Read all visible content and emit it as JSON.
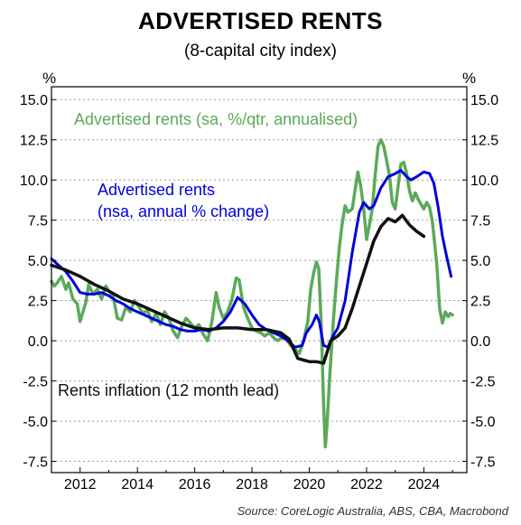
{
  "title": "ADVERTISED RENTS",
  "subtitle": "(8-capital city index)",
  "source": "Source: CoreLogic Australia, ABS, CBA, Macrobond",
  "chart_data": {
    "type": "line",
    "left_unit": "%",
    "right_unit": "%",
    "xlim": [
      2011.0,
      2025.5
    ],
    "ylim": [
      -8.2,
      15.8
    ],
    "x_ticks": [
      2012,
      2014,
      2016,
      2018,
      2020,
      2022,
      2024
    ],
    "y_ticks": [
      15.0,
      12.5,
      10.0,
      7.5,
      5.0,
      2.5,
      0.0,
      -2.5,
      -5.0,
      -7.5
    ],
    "y_tick_labels": [
      "15.0",
      "12.5",
      "10.0",
      "7.5",
      "5.0",
      "2.5",
      "0.0",
      "-2.5",
      "-5.0",
      "-7.5"
    ],
    "grid": "horizontal dotted",
    "series": [
      {
        "name": "Advertised rents (sa, %/qtr, annualised)",
        "label_lines": [
          "Advertised rents (sa, %/qtr, annualised)"
        ],
        "color": "#5aaa5a",
        "stroke": 3.5,
        "points": [
          [
            2011.0,
            3.7
          ],
          [
            2011.1,
            3.4
          ],
          [
            2011.2,
            3.6
          ],
          [
            2011.35,
            4.0
          ],
          [
            2011.5,
            3.2
          ],
          [
            2011.6,
            3.6
          ],
          [
            2011.75,
            2.6
          ],
          [
            2011.9,
            2.3
          ],
          [
            2012.0,
            1.2
          ],
          [
            2012.1,
            1.8
          ],
          [
            2012.2,
            2.4
          ],
          [
            2012.3,
            3.5
          ],
          [
            2012.45,
            2.9
          ],
          [
            2012.6,
            3.2
          ],
          [
            2012.75,
            2.6
          ],
          [
            2012.9,
            3.4
          ],
          [
            2013.0,
            3.1
          ],
          [
            2013.15,
            2.8
          ],
          [
            2013.3,
            1.4
          ],
          [
            2013.45,
            1.3
          ],
          [
            2013.6,
            2.1
          ],
          [
            2013.75,
            1.8
          ],
          [
            2013.9,
            2.5
          ],
          [
            2014.05,
            2.1
          ],
          [
            2014.2,
            1.7
          ],
          [
            2014.35,
            1.9
          ],
          [
            2014.5,
            1.2
          ],
          [
            2014.65,
            1.7
          ],
          [
            2014.8,
            1.0
          ],
          [
            2014.95,
            1.8
          ],
          [
            2015.1,
            1.4
          ],
          [
            2015.25,
            0.6
          ],
          [
            2015.4,
            0.2
          ],
          [
            2015.55,
            0.9
          ],
          [
            2015.7,
            1.4
          ],
          [
            2015.85,
            1.1
          ],
          [
            2016.0,
            0.8
          ],
          [
            2016.15,
            1.0
          ],
          [
            2016.3,
            0.4
          ],
          [
            2016.45,
            0.0
          ],
          [
            2016.6,
            1.2
          ],
          [
            2016.75,
            3.0
          ],
          [
            2016.85,
            2.1
          ],
          [
            2017.0,
            1.4
          ],
          [
            2017.15,
            1.8
          ],
          [
            2017.3,
            2.6
          ],
          [
            2017.45,
            3.9
          ],
          [
            2017.55,
            3.8
          ],
          [
            2017.7,
            2.1
          ],
          [
            2017.85,
            1.4
          ],
          [
            2018.0,
            0.8
          ],
          [
            2018.15,
            0.6
          ],
          [
            2018.3,
            0.5
          ],
          [
            2018.45,
            0.3
          ],
          [
            2018.6,
            0.5
          ],
          [
            2018.75,
            0.2
          ],
          [
            2018.9,
            0.0
          ],
          [
            2019.05,
            0.2
          ],
          [
            2019.2,
            0.1
          ],
          [
            2019.35,
            -0.3
          ],
          [
            2019.5,
            -0.5
          ],
          [
            2019.65,
            -0.8
          ],
          [
            2019.8,
            0.0
          ],
          [
            2019.95,
            1.2
          ],
          [
            2020.05,
            3.2
          ],
          [
            2020.15,
            4.2
          ],
          [
            2020.25,
            4.9
          ],
          [
            2020.33,
            4.5
          ],
          [
            2020.42,
            1.0
          ],
          [
            2020.5,
            -4.0
          ],
          [
            2020.56,
            -6.6
          ],
          [
            2020.62,
            -5.2
          ],
          [
            2020.72,
            -2.0
          ],
          [
            2020.85,
            1.5
          ],
          [
            2020.95,
            3.8
          ],
          [
            2021.05,
            5.8
          ],
          [
            2021.15,
            7.3
          ],
          [
            2021.25,
            8.4
          ],
          [
            2021.35,
            8.0
          ],
          [
            2021.5,
            8.2
          ],
          [
            2021.6,
            9.4
          ],
          [
            2021.7,
            10.5
          ],
          [
            2021.8,
            9.6
          ],
          [
            2021.9,
            8.2
          ],
          [
            2022.0,
            6.3
          ],
          [
            2022.1,
            7.2
          ],
          [
            2022.2,
            8.2
          ],
          [
            2022.3,
            10.3
          ],
          [
            2022.4,
            12.1
          ],
          [
            2022.5,
            12.5
          ],
          [
            2022.6,
            12.1
          ],
          [
            2022.7,
            11.2
          ],
          [
            2022.8,
            10.3
          ],
          [
            2022.9,
            8.6
          ],
          [
            2023.0,
            8.2
          ],
          [
            2023.1,
            9.6
          ],
          [
            2023.2,
            11.0
          ],
          [
            2023.3,
            11.1
          ],
          [
            2023.4,
            10.4
          ],
          [
            2023.5,
            9.3
          ],
          [
            2023.6,
            8.7
          ],
          [
            2023.7,
            9.2
          ],
          [
            2023.8,
            8.8
          ],
          [
            2023.9,
            8.5
          ],
          [
            2024.0,
            8.2
          ],
          [
            2024.1,
            8.6
          ],
          [
            2024.2,
            8.3
          ],
          [
            2024.3,
            7.4
          ],
          [
            2024.45,
            4.8
          ],
          [
            2024.55,
            2.0
          ],
          [
            2024.65,
            1.1
          ],
          [
            2024.75,
            1.8
          ],
          [
            2024.85,
            1.5
          ],
          [
            2024.92,
            1.7
          ],
          [
            2025.0,
            1.6
          ]
        ]
      },
      {
        "name": "Advertised rents (nsa, annual % change)",
        "label_lines": [
          "Advertised rents",
          "(nsa, annual % change)"
        ],
        "color": "#0000dd",
        "stroke": 3,
        "points": [
          [
            2011.0,
            5.1
          ],
          [
            2011.25,
            4.7
          ],
          [
            2011.5,
            4.3
          ],
          [
            2011.75,
            3.7
          ],
          [
            2012.0,
            3.0
          ],
          [
            2012.25,
            2.9
          ],
          [
            2012.5,
            2.9
          ],
          [
            2012.75,
            3.0
          ],
          [
            2013.0,
            2.8
          ],
          [
            2013.25,
            2.5
          ],
          [
            2013.5,
            2.3
          ],
          [
            2013.75,
            2.0
          ],
          [
            2014.0,
            1.8
          ],
          [
            2014.25,
            1.6
          ],
          [
            2014.5,
            1.4
          ],
          [
            2014.75,
            1.2
          ],
          [
            2015.0,
            1.0
          ],
          [
            2015.25,
            0.9
          ],
          [
            2015.5,
            0.7
          ],
          [
            2015.75,
            0.6
          ],
          [
            2016.0,
            0.6
          ],
          [
            2016.25,
            0.7
          ],
          [
            2016.5,
            0.6
          ],
          [
            2016.75,
            0.8
          ],
          [
            2017.0,
            1.2
          ],
          [
            2017.25,
            1.8
          ],
          [
            2017.5,
            2.7
          ],
          [
            2017.75,
            2.3
          ],
          [
            2018.0,
            1.6
          ],
          [
            2018.25,
            1.0
          ],
          [
            2018.5,
            0.7
          ],
          [
            2018.75,
            0.5
          ],
          [
            2019.0,
            0.3
          ],
          [
            2019.25,
            0.0
          ],
          [
            2019.5,
            -0.4
          ],
          [
            2019.75,
            -0.3
          ],
          [
            2019.9,
            0.5
          ],
          [
            2020.1,
            1.0
          ],
          [
            2020.25,
            1.6
          ],
          [
            2020.35,
            1.2
          ],
          [
            2020.5,
            -0.3
          ],
          [
            2020.65,
            -0.4
          ],
          [
            2020.8,
            0.2
          ],
          [
            2021.0,
            0.8
          ],
          [
            2021.25,
            2.5
          ],
          [
            2021.5,
            5.5
          ],
          [
            2021.75,
            8.0
          ],
          [
            2021.9,
            8.6
          ],
          [
            2022.1,
            8.2
          ],
          [
            2022.25,
            8.4
          ],
          [
            2022.5,
            9.5
          ],
          [
            2022.75,
            10.2
          ],
          [
            2023.0,
            10.4
          ],
          [
            2023.2,
            10.6
          ],
          [
            2023.4,
            10.2
          ],
          [
            2023.55,
            10.0
          ],
          [
            2023.75,
            10.2
          ],
          [
            2024.0,
            10.5
          ],
          [
            2024.2,
            10.4
          ],
          [
            2024.35,
            9.8
          ],
          [
            2024.5,
            8.3
          ],
          [
            2024.65,
            6.5
          ],
          [
            2024.8,
            5.2
          ],
          [
            2024.95,
            4.0
          ]
        ]
      },
      {
        "name": "Rents inflation (12 month lead)",
        "label_lines": [
          "Rents inflation (12 month lead)"
        ],
        "color": "#111111",
        "stroke": 3.5,
        "points": [
          [
            2011.0,
            4.7
          ],
          [
            2011.5,
            4.4
          ],
          [
            2012.0,
            4.0
          ],
          [
            2012.5,
            3.5
          ],
          [
            2013.0,
            3.1
          ],
          [
            2013.5,
            2.6
          ],
          [
            2014.0,
            2.3
          ],
          [
            2014.5,
            1.9
          ],
          [
            2015.0,
            1.5
          ],
          [
            2015.5,
            1.1
          ],
          [
            2016.0,
            0.8
          ],
          [
            2016.5,
            0.7
          ],
          [
            2017.0,
            0.8
          ],
          [
            2017.5,
            0.8
          ],
          [
            2018.0,
            0.7
          ],
          [
            2018.5,
            0.7
          ],
          [
            2019.0,
            0.5
          ],
          [
            2019.3,
            0.1
          ],
          [
            2019.6,
            -1.1
          ],
          [
            2020.0,
            -1.3
          ],
          [
            2020.25,
            -1.3
          ],
          [
            2020.5,
            -1.4
          ],
          [
            2020.75,
            0.0
          ],
          [
            2021.0,
            0.3
          ],
          [
            2021.25,
            0.8
          ],
          [
            2021.5,
            2.0
          ],
          [
            2021.75,
            3.4
          ],
          [
            2022.0,
            4.8
          ],
          [
            2022.25,
            6.2
          ],
          [
            2022.5,
            7.1
          ],
          [
            2022.75,
            7.6
          ],
          [
            2023.0,
            7.4
          ],
          [
            2023.25,
            7.8
          ],
          [
            2023.5,
            7.2
          ],
          [
            2023.75,
            6.8
          ],
          [
            2024.0,
            6.5
          ]
        ]
      }
    ]
  }
}
